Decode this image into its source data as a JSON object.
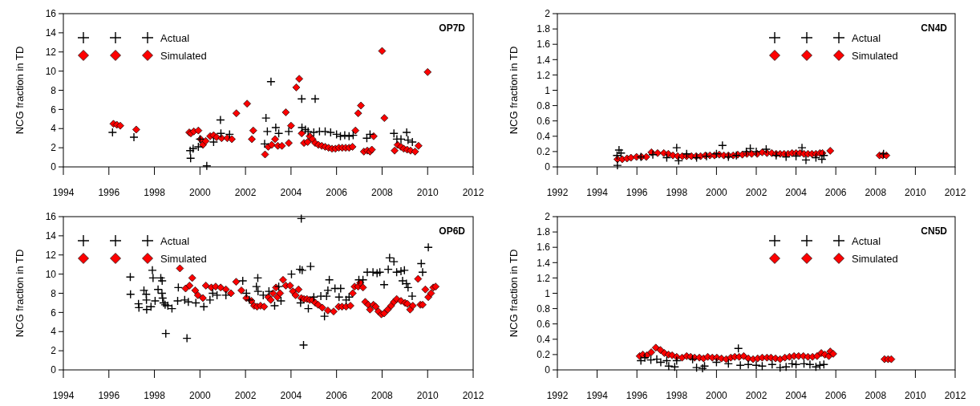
{
  "chart_data": [
    {
      "type": "scatter",
      "title": "OP7D",
      "ylabel": "NCG fraction in TD",
      "xlim": [
        1994,
        2012
      ],
      "xticks": [
        1994,
        1996,
        1998,
        2000,
        2002,
        2004,
        2006,
        2008,
        2010,
        2012
      ],
      "ylim": [
        0,
        16
      ],
      "yticks": [
        0,
        2,
        4,
        6,
        8,
        10,
        12,
        14,
        16
      ],
      "legend": "top left",
      "grid": false,
      "series": [
        {
          "name": "Actual",
          "color": "#000000",
          "marker": "cross",
          "x": [
            1996.16,
            1997.1,
            1999.59,
            1999.57,
            1999.7,
            1999.93,
            2000.0,
            2000.3,
            2000.6,
            2000.9,
            2000.92,
            2001.3,
            2002.9,
            2002.84,
            2002.96,
            2003.12,
            2003.33,
            2003.46,
            2003.9,
            2004.47,
            2004.48,
            2004.63,
            2004.75,
            2005.06,
            2005.0,
            2005.25,
            2005.5,
            2005.74,
            2006.0,
            2006.17,
            2006.36,
            2006.55,
            2006.73,
            2007.33,
            2007.47,
            2008.52,
            2008.65,
            2008.83,
            2009.08,
            2009.14,
            2009.33
          ],
          "values": [
            3.6,
            3.1,
            0.9,
            1.7,
            1.9,
            2.1,
            2.9,
            0.1,
            2.6,
            4.9,
            3.5,
            3.4,
            5.1,
            2.4,
            3.7,
            8.9,
            4.1,
            3.5,
            3.7,
            7.1,
            4.1,
            3.9,
            3.7,
            7.1,
            3.6,
            3.7,
            3.7,
            3.6,
            3.4,
            3.2,
            3.3,
            3.2,
            3.3,
            3.0,
            3.4,
            3.5,
            2.9,
            2.9,
            3.6,
            2.8,
            2.6
          ]
        },
        {
          "name": "Simulated",
          "color": "#ff0000",
          "marker": "diamond",
          "x": [
            1996.2,
            1996.35,
            1996.5,
            1997.2,
            1999.53,
            1999.6,
            1999.73,
            1999.93,
            2000.03,
            2000.13,
            2000.25,
            2000.45,
            2000.6,
            2000.73,
            2000.95,
            2001.2,
            2001.4,
            2001.6,
            2002.07,
            2002.28,
            2002.34,
            2002.86,
            2003.0,
            2003.15,
            2003.3,
            2003.42,
            2003.6,
            2003.77,
            2003.9,
            2004.0,
            2004.23,
            2004.36,
            2004.47,
            2004.57,
            2004.73,
            2004.82,
            2004.94,
            2005.06,
            2005.2,
            2005.35,
            2005.5,
            2005.65,
            2005.8,
            2005.95,
            2006.1,
            2006.25,
            2006.4,
            2006.55,
            2006.7,
            2006.83,
            2006.95,
            2007.07,
            2007.2,
            2007.35,
            2007.47,
            2007.55,
            2007.63,
            2008.0,
            2008.1,
            2008.55,
            2008.68,
            2008.83,
            2008.95,
            2009.1,
            2009.25,
            2009.45,
            2009.6,
            2010.0
          ],
          "values": [
            4.5,
            4.4,
            4.3,
            3.9,
            3.6,
            3.5,
            3.7,
            3.8,
            2.9,
            2.3,
            2.7,
            3.2,
            3.3,
            3.1,
            3.0,
            3.0,
            2.9,
            5.6,
            6.6,
            2.9,
            3.8,
            1.3,
            2.1,
            2.3,
            2.9,
            2.2,
            2.2,
            5.7,
            2.5,
            4.3,
            8.3,
            9.2,
            3.5,
            2.5,
            2.6,
            3.2,
            2.9,
            2.5,
            2.3,
            2.2,
            2.1,
            2.0,
            1.9,
            1.9,
            2.0,
            2.0,
            2.0,
            2.0,
            2.1,
            3.8,
            5.6,
            6.4,
            1.6,
            1.7,
            1.6,
            1.8,
            3.2,
            12.1,
            5.1,
            1.7,
            2.3,
            2.1,
            1.9,
            1.8,
            1.7,
            1.6,
            2.2,
            9.9
          ]
        }
      ]
    },
    {
      "type": "scatter",
      "title": "CN4D",
      "ylabel": "NCG fraction in TD",
      "xlim": [
        1992,
        2012
      ],
      "xticks": [
        1992,
        1994,
        1996,
        1998,
        2000,
        2002,
        2004,
        2006,
        2008,
        2010,
        2012
      ],
      "ylim": [
        0,
        2
      ],
      "yticks": [
        0,
        0.2,
        0.4,
        0.6,
        0.8,
        1,
        1.2,
        1.4,
        1.6,
        1.8,
        2
      ],
      "legend": "top right",
      "grid": false,
      "series": [
        {
          "name": "Actual",
          "color": "#000000",
          "marker": "cross",
          "x": [
            1995.0,
            1995.02,
            1995.1,
            1995.2,
            1996.2,
            1996.8,
            1997.5,
            1998.0,
            1998.1,
            1998.5,
            1999.0,
            1999.5,
            2000.0,
            2000.3,
            2000.6,
            2001.0,
            2001.5,
            2001.7,
            2002.0,
            2002.5,
            2003.0,
            2003.5,
            2004.0,
            2004.3,
            2004.5,
            2005.0,
            2005.3,
            2005.4,
            2008.4
          ],
          "values": [
            0.15,
            0.02,
            0.22,
            0.18,
            0.13,
            0.16,
            0.12,
            0.25,
            0.08,
            0.17,
            0.12,
            0.14,
            0.17,
            0.28,
            0.13,
            0.15,
            0.2,
            0.24,
            0.2,
            0.23,
            0.15,
            0.13,
            0.14,
            0.25,
            0.09,
            0.12,
            0.1,
            0.15,
            0.17
          ]
        },
        {
          "name": "Simulated",
          "color": "#ff0000",
          "marker": "diamond",
          "x": [
            1995.02,
            1995.26,
            1995.5,
            1995.7,
            1995.98,
            1996.23,
            1996.47,
            1996.73,
            1997.04,
            1997.35,
            1997.58,
            1997.81,
            1998.05,
            1998.28,
            1998.5,
            1998.74,
            1998.98,
            1999.2,
            1999.44,
            1999.67,
            1999.9,
            2000.14,
            2000.37,
            2000.6,
            2000.84,
            2001.07,
            2001.3,
            2001.53,
            2001.77,
            2002.05,
            2002.3,
            2002.54,
            2002.78,
            2003.0,
            2003.2,
            2003.4,
            2003.6,
            2003.8,
            2004.0,
            2004.2,
            2004.4,
            2004.6,
            2004.8,
            2005.0,
            2005.2,
            2005.33,
            2005.72,
            2008.2,
            2008.36,
            2008.54
          ],
          "values": [
            0.1,
            0.1,
            0.11,
            0.12,
            0.13,
            0.13,
            0.13,
            0.19,
            0.18,
            0.18,
            0.17,
            0.15,
            0.14,
            0.14,
            0.14,
            0.14,
            0.14,
            0.14,
            0.15,
            0.15,
            0.15,
            0.16,
            0.15,
            0.15,
            0.15,
            0.16,
            0.16,
            0.17,
            0.17,
            0.17,
            0.19,
            0.18,
            0.18,
            0.17,
            0.17,
            0.17,
            0.17,
            0.18,
            0.18,
            0.18,
            0.17,
            0.17,
            0.17,
            0.17,
            0.18,
            0.18,
            0.21,
            0.15,
            0.15,
            0.15
          ]
        }
      ]
    },
    {
      "type": "scatter",
      "title": "OP6D",
      "ylabel": "NCG fraction in TD",
      "xlim": [
        1994,
        2012
      ],
      "xticks": [
        1994,
        1996,
        1998,
        2000,
        2002,
        2004,
        2006,
        2008,
        2010,
        2012
      ],
      "ylim": [
        0,
        16
      ],
      "yticks": [
        0,
        2,
        4,
        6,
        8,
        10,
        12,
        14,
        16
      ],
      "legend": "top left",
      "grid": false,
      "series": [
        {
          "name": "Actual",
          "color": "#000000",
          "marker": "cross",
          "x": [
            1996.94,
            1996.95,
            1997.3,
            1997.32,
            1997.54,
            1997.64,
            1997.65,
            1997.66,
            1997.91,
            1997.94,
            1997.85,
            1998.03,
            1998.16,
            1998.28,
            1998.34,
            1998.33,
            1998.36,
            1998.4,
            1998.47,
            1998.5,
            1998.59,
            1998.77,
            1999.02,
            1999.05,
            1999.43,
            1999.33,
            1999.49,
            1999.82,
            2000.17,
            2000.44,
            2000.56,
            2000.75,
            2001.14,
            2001.88,
            2002.04,
            2002.17,
            2002.54,
            2002.48,
            2002.55,
            2002.78,
            2003.03,
            2003.28,
            2003.46,
            2003.56,
            2004.02,
            2004.39,
            2004.49,
            2004.45,
            2004.42,
            2004.55,
            2004.86,
            2004.76,
            2005.0,
            2005.31,
            2005.47,
            2005.56,
            2005.68,
            2005.62,
            2005.93,
            2006.18,
            2006.11,
            2006.42,
            2006.55,
            2006.98,
            2007.16,
            2007.35,
            2007.6,
            2007.78,
            2007.9,
            2008.09,
            2008.27,
            2008.33,
            2008.52,
            2008.64,
            2008.83,
            2008.98,
            2008.9,
            2009.07,
            2009.14,
            2009.32,
            2009.72,
            2009.78,
            2010.03
          ],
          "values": [
            9.7,
            7.9,
            6.9,
            6.5,
            8.3,
            7.9,
            7.3,
            6.3,
            10.4,
            9.6,
            6.6,
            7.2,
            8.4,
            9.6,
            9.3,
            8.0,
            7.5,
            7.0,
            6.8,
            3.8,
            6.7,
            6.4,
            7.2,
            8.6,
            3.3,
            7.3,
            7.1,
            7.0,
            6.6,
            7.3,
            8.0,
            7.8,
            7.8,
            9.3,
            8.0,
            7.3,
            9.6,
            8.7,
            8.2,
            7.8,
            8.2,
            6.7,
            8.7,
            7.2,
            10.0,
            10.5,
            10.4,
            15.8,
            7.0,
            2.6,
            10.8,
            6.4,
            7.6,
            7.7,
            5.6,
            7.7,
            9.4,
            8.3,
            8.5,
            8.5,
            7.6,
            7.3,
            7.6,
            9.4,
            9.4,
            10.2,
            10.2,
            10.1,
            10.2,
            8.9,
            10.5,
            11.7,
            11.3,
            10.2,
            10.3,
            10.4,
            9.3,
            9.0,
            8.6,
            7.7,
            11.1,
            10.2,
            12.8
          ]
        },
        {
          "name": "Simulated",
          "color": "#ff0000",
          "marker": "diamond",
          "x": [
            1999.12,
            1999.37,
            1999.54,
            1999.66,
            1999.79,
            1999.91,
            2000.13,
            2000.26,
            2000.5,
            2000.69,
            2000.91,
            2001.14,
            2001.36,
            2001.59,
            2001.82,
            2002.04,
            2002.26,
            2002.38,
            2002.51,
            2002.66,
            2002.82,
            2003.0,
            2003.11,
            2003.21,
            2003.34,
            2003.4,
            2003.52,
            2003.65,
            2003.77,
            2003.96,
            2004.08,
            2004.2,
            2004.33,
            2004.45,
            2004.57,
            2004.7,
            2004.82,
            2004.94,
            2005.07,
            2005.19,
            2005.37,
            2005.62,
            2005.87,
            2006.09,
            2006.24,
            2006.42,
            2006.61,
            2006.71,
            2006.79,
            2006.95,
            2007.04,
            2007.16,
            2007.26,
            2007.39,
            2007.47,
            2007.62,
            2007.72,
            2007.84,
            2007.97,
            2008.09,
            2008.25,
            2008.4,
            2008.52,
            2008.64,
            2008.83,
            2009.01,
            2009.11,
            2009.23,
            2009.35,
            2009.58,
            2009.68,
            2009.78,
            2009.9,
            2010.03,
            2010.15,
            2010.25,
            2010.35
          ],
          "values": [
            10.6,
            8.5,
            8.8,
            9.6,
            8.3,
            7.8,
            7.5,
            8.8,
            8.6,
            8.7,
            8.6,
            8.4,
            8.0,
            9.2,
            8.3,
            7.5,
            7.2,
            6.7,
            6.6,
            6.7,
            6.6,
            7.6,
            7.3,
            8.0,
            8.6,
            7.6,
            8.0,
            9.4,
            8.8,
            8.8,
            8.2,
            7.8,
            8.4,
            7.5,
            7.4,
            7.4,
            7.3,
            7.3,
            7.0,
            6.8,
            6.5,
            6.2,
            6.1,
            6.6,
            6.6,
            6.6,
            6.7,
            8.0,
            8.7,
            8.7,
            9.1,
            8.6,
            7.1,
            6.8,
            6.3,
            6.8,
            6.6,
            6.1,
            5.8,
            5.9,
            6.3,
            6.7,
            7.1,
            7.4,
            7.2,
            7.0,
            6.9,
            6.3,
            6.7,
            9.5,
            6.8,
            6.8,
            8.4,
            7.6,
            8.0,
            8.6,
            8.7
          ]
        }
      ]
    },
    {
      "type": "scatter",
      "title": "CN5D",
      "ylabel": "NCG fraction in TD",
      "xlim": [
        1992,
        2012
      ],
      "xticks": [
        1992,
        1994,
        1996,
        1998,
        2000,
        2002,
        2004,
        2006,
        2008,
        2010,
        2012
      ],
      "ylim": [
        0,
        2
      ],
      "yticks": [
        0,
        0.2,
        0.4,
        0.6,
        0.8,
        1,
        1.2,
        1.4,
        1.6,
        1.8,
        2
      ],
      "legend": "top right",
      "grid": false,
      "series": [
        {
          "name": "Actual",
          "color": "#000000",
          "marker": "cross",
          "x": [
            1996.2,
            1996.4,
            1996.7,
            1997.0,
            1997.2,
            1997.5,
            1997.6,
            1997.9,
            1998.0,
            1998.8,
            1999.0,
            1999.3,
            1999.4,
            2000.0,
            2000.6,
            2001.1,
            2001.2,
            2001.6,
            2002.0,
            2002.3,
            2002.8,
            2003.2,
            2003.5,
            2003.8,
            2004.0,
            2004.4,
            2004.7,
            2005.0,
            2005.2,
            2005.4
          ],
          "values": [
            0.12,
            0.16,
            0.13,
            0.14,
            0.1,
            0.12,
            0.05,
            0.04,
            0.12,
            0.14,
            0.03,
            0.02,
            0.05,
            0.1,
            0.08,
            0.28,
            0.06,
            0.07,
            0.06,
            0.05,
            0.07,
            0.03,
            0.04,
            0.08,
            0.07,
            0.08,
            0.07,
            0.04,
            0.06,
            0.07
          ]
        },
        {
          "name": "Simulated",
          "color": "#ff0000",
          "marker": "diamond",
          "x": [
            1996.14,
            1996.3,
            1996.5,
            1996.72,
            1996.95,
            1997.18,
            1997.38,
            1997.59,
            1997.77,
            1998.0,
            1998.27,
            1998.5,
            1998.7,
            1998.9,
            1999.14,
            1999.35,
            1999.56,
            1999.79,
            2000.02,
            2000.25,
            2000.49,
            2000.72,
            2000.92,
            2001.14,
            2001.37,
            2001.6,
            2001.84,
            2002.07,
            2002.3,
            2002.54,
            2002.74,
            2002.97,
            2003.2,
            2003.44,
            2003.67,
            2003.9,
            2004.13,
            2004.37,
            2004.6,
            2004.83,
            2005.06,
            2005.27,
            2005.45,
            2005.65,
            2005.72,
            2005.87,
            2008.45,
            2008.63,
            2008.79
          ],
          "values": [
            0.18,
            0.2,
            0.19,
            0.23,
            0.29,
            0.26,
            0.22,
            0.2,
            0.19,
            0.17,
            0.16,
            0.18,
            0.17,
            0.16,
            0.16,
            0.15,
            0.17,
            0.16,
            0.16,
            0.15,
            0.14,
            0.16,
            0.17,
            0.17,
            0.18,
            0.15,
            0.14,
            0.15,
            0.16,
            0.16,
            0.16,
            0.15,
            0.14,
            0.16,
            0.17,
            0.18,
            0.18,
            0.18,
            0.17,
            0.17,
            0.18,
            0.22,
            0.2,
            0.18,
            0.24,
            0.21,
            0.14,
            0.14,
            0.14
          ]
        }
      ]
    }
  ]
}
